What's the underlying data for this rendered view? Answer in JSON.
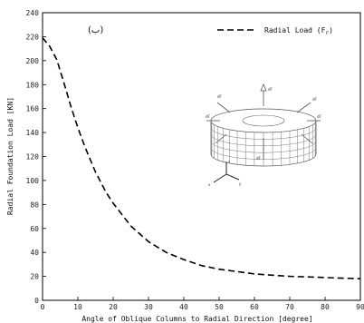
{
  "chart_data": {
    "type": "line",
    "panel_label": "(ب)",
    "xlabel": "Angle of Oblique Columns to Radial Direction [degree]",
    "ylabel": "Radial Foundation Load [KN]",
    "xlim": [
      0,
      90
    ],
    "ylim": [
      0,
      240
    ],
    "xticks": [
      0,
      10,
      20,
      30,
      40,
      50,
      60,
      70,
      80,
      90
    ],
    "yticks": [
      0,
      20,
      40,
      60,
      80,
      100,
      120,
      140,
      160,
      180,
      200,
      220,
      240
    ],
    "grid": false,
    "legend": {
      "placement": "top-right",
      "entries": [
        {
          "label": "Radial Load (F",
          "subscript": "r",
          "close": ")",
          "line_style": "dashed"
        }
      ]
    },
    "series": [
      {
        "name": "Radial Load (Fr)",
        "line_style": "dashed",
        "color": "#000000",
        "x": [
          0,
          2,
          4,
          6,
          8,
          10,
          12,
          15,
          18,
          20,
          25,
          30,
          35,
          40,
          45,
          50,
          55,
          60,
          65,
          70,
          75,
          80,
          85,
          90
        ],
        "y": [
          219,
          212,
          201,
          182,
          162,
          144,
          128,
          107,
          90,
          81,
          62,
          49,
          40,
          34,
          29,
          26,
          24,
          22,
          21,
          20,
          19.5,
          19,
          18.5,
          18
        ]
      }
    ],
    "inset_labels": [
      "dF",
      "dF",
      "dF",
      "dF",
      "dF",
      "dF",
      "z",
      "y",
      "x"
    ]
  }
}
